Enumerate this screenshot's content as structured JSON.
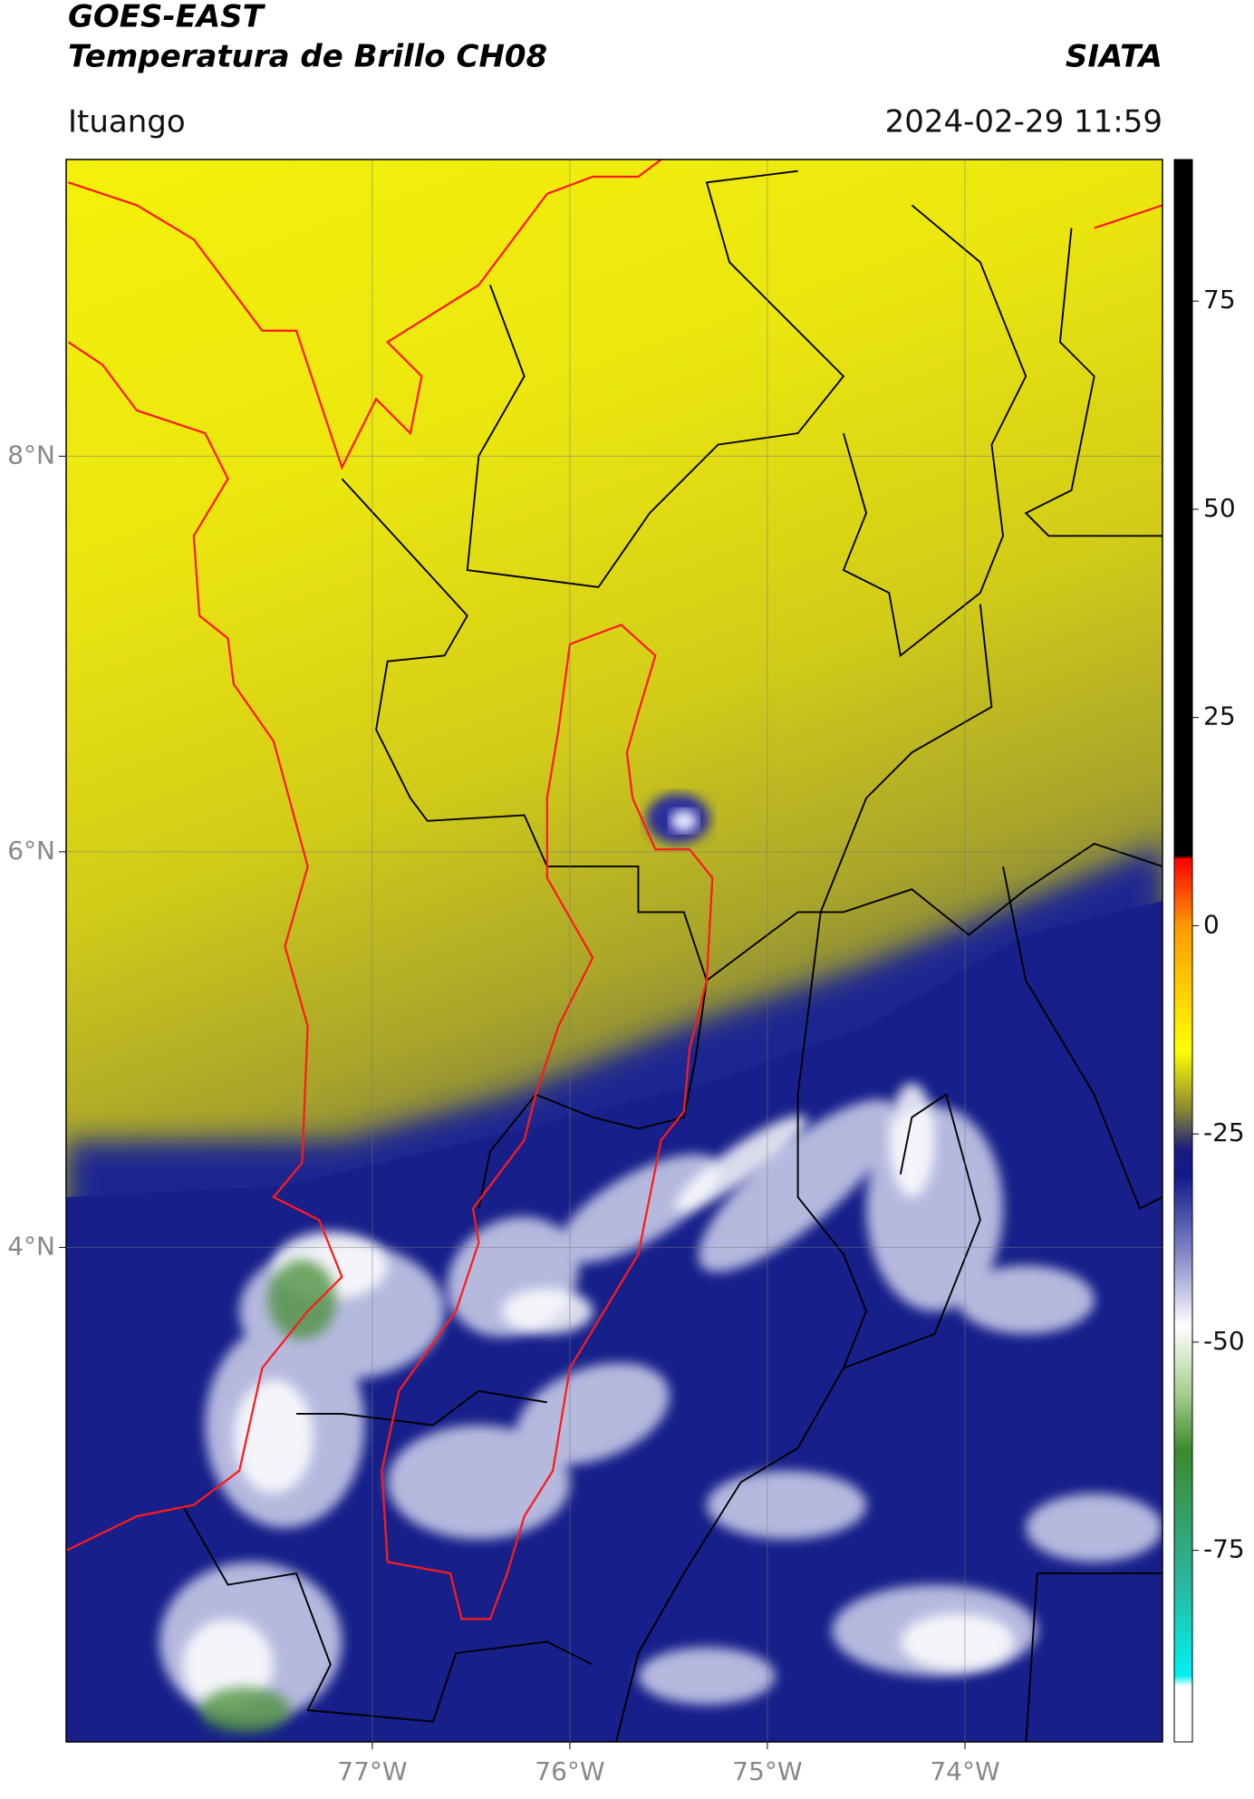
{
  "header": {
    "title": "GOES-EAST",
    "subtitle": "Temperatura de Brillo CH08",
    "agency": "SIATA",
    "location": "Ituango",
    "timestamp": "2024-02-29 11:59"
  },
  "map": {
    "xlim": [
      -78.55,
      -73
    ],
    "ylim": [
      1.5,
      9.5
    ],
    "xticks": [
      {
        "value": -77,
        "label": "77°W"
      },
      {
        "value": -76,
        "label": "76°W"
      },
      {
        "value": -75,
        "label": "75°W"
      },
      {
        "value": -74,
        "label": "74°W"
      }
    ],
    "yticks": [
      {
        "value": 8,
        "label": "8°N"
      },
      {
        "value": 6,
        "label": "6°N"
      },
      {
        "value": 4,
        "label": "4°N"
      }
    ],
    "grid": true
  },
  "colorbar": {
    "lim": [
      -98,
      92
    ],
    "ticks": [
      75,
      50,
      25,
      0,
      -25,
      -50,
      -75
    ]
  }
}
